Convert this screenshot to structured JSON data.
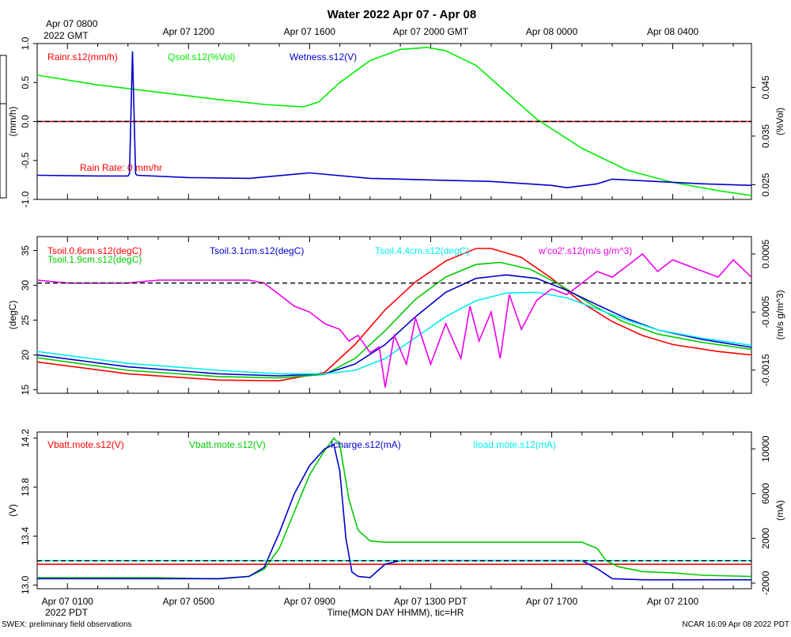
{
  "title": "Water 2022 Apr 07 - Apr 08",
  "top_axis": {
    "first_label_line1": "Apr 07 0800",
    "first_label_line2": "2022 GMT",
    "labels": [
      "Apr 07 1200",
      "Apr 07 1600",
      "Apr 07 2000 GMT",
      "Apr 08 0000",
      "Apr 08 0400"
    ]
  },
  "bottom_axis": {
    "labels": [
      "Apr 07 0100",
      "Apr 07 0500",
      "Apr 07 0900",
      "Apr 07 1300 PDT",
      "Apr 07 1700",
      "Apr 07 2100"
    ],
    "year_label": "2022 PDT",
    "axis_title": "Time(MON DAY HHMM), tic=HR"
  },
  "footer": {
    "left": "SWEX: preliminary field observations",
    "right": "NCAR 16:09 Apr 08 2022 PDT"
  },
  "chart_data": [
    {
      "type": "line",
      "panel": "water",
      "x_unit": "hours since Apr 07 0000 PDT",
      "xlim": [
        0.0,
        23.6
      ],
      "left_axis": {
        "label": "(mm/h)",
        "ylim": [
          -1.0,
          1.0
        ],
        "ticks": [
          "-1.0",
          "-0.5",
          "0.0",
          "0.5",
          "1.0"
        ]
      },
      "right_axis": {
        "label": "(%Vol)",
        "ylim": [
          0.022,
          0.054
        ],
        "ticks": [
          "0.025",
          "0.035",
          "0.045"
        ]
      },
      "reference_line": 0.0,
      "annotation": "Rain Rate: 0 mm/hr",
      "series": [
        {
          "name": "Rainr.s12(mm/h)",
          "color": "#ff0000",
          "axis": "left",
          "x": [
            0.0,
            23.6
          ],
          "y": [
            0.0,
            0.0
          ]
        },
        {
          "name": "Qsoil.s12(%Vol)",
          "color": "#00ee00",
          "axis": "right",
          "x": [
            0.0,
            2.0,
            4.0,
            6.0,
            7.5,
            8.8,
            9.3,
            10.0,
            11.0,
            12.0,
            12.9,
            13.5,
            14.5,
            15.5,
            16.5,
            18.0,
            19.5,
            21.0,
            22.5,
            23.6
          ],
          "y": [
            0.0475,
            0.0455,
            0.044,
            0.0425,
            0.0415,
            0.041,
            0.042,
            0.046,
            0.0505,
            0.0528,
            0.0532,
            0.0525,
            0.0495,
            0.044,
            0.0385,
            0.0325,
            0.028,
            0.0255,
            0.0238,
            0.0228
          ]
        },
        {
          "name": "Wetness.s12(V)",
          "color": "#0000cc",
          "axis": "left",
          "x": [
            0.0,
            2.0,
            3.0,
            3.05,
            3.15,
            3.25,
            3.3,
            5.0,
            7.0,
            9.0,
            11.0,
            13.0,
            15.0,
            17.0,
            17.5,
            18.5,
            19.0,
            20.0,
            22.0,
            23.6
          ],
          "y": [
            -0.69,
            -0.7,
            -0.7,
            -0.67,
            0.9,
            -0.67,
            -0.69,
            -0.72,
            -0.73,
            -0.66,
            -0.73,
            -0.75,
            -0.77,
            -0.82,
            -0.85,
            -0.8,
            -0.74,
            -0.76,
            -0.8,
            -0.82
          ]
        }
      ]
    },
    {
      "type": "line",
      "panel": "soil-temperature",
      "x_unit": "hours since Apr 07 0000 PDT",
      "xlim": [
        0.0,
        23.6
      ],
      "left_axis": {
        "label": "(degC)",
        "ylim": [
          14.5,
          37.0
        ],
        "ticks": [
          "15",
          "20",
          "25",
          "30",
          "35"
        ]
      },
      "right_axis": {
        "label": "(m/s g/m^3)",
        "ylim": [
          -0.0019,
          0.0008
        ],
        "ticks": [
          "-0.0015",
          "-0.0005",
          "0.0005"
        ]
      },
      "reference_line": 0.0,
      "series": [
        {
          "name": "Tsoil.0.6cm.s12(degC)",
          "color": "#ff0000",
          "axis": "left",
          "x": [
            0.0,
            3.0,
            6.0,
            8.0,
            9.5,
            10.5,
            11.5,
            12.5,
            13.5,
            14.5,
            15.0,
            16.0,
            17.0,
            18.0,
            19.0,
            20.0,
            21.0,
            22.5,
            23.6
          ],
          "y": [
            19.0,
            17.3,
            16.4,
            16.3,
            17.5,
            21.5,
            26.5,
            30.5,
            33.5,
            35.3,
            35.3,
            34.0,
            31.0,
            27.5,
            24.8,
            22.8,
            21.5,
            20.5,
            20.0
          ]
        },
        {
          "name": "Tsoil.1.9cm.s12(degC)",
          "color": "#00cc00",
          "axis": "left",
          "x": [
            0.0,
            3.0,
            6.0,
            8.0,
            9.5,
            10.5,
            11.5,
            12.5,
            13.5,
            14.5,
            15.3,
            16.3,
            17.3,
            18.3,
            19.3,
            20.5,
            22.0,
            23.6
          ],
          "y": [
            19.6,
            17.8,
            16.9,
            16.7,
            17.2,
            19.5,
            23.5,
            28.0,
            31.2,
            33.0,
            33.3,
            32.3,
            30.0,
            27.3,
            24.9,
            23.0,
            21.8,
            20.8
          ]
        },
        {
          "name": "Tsoil.3.1cm.s12(degC)",
          "color": "#0000cc",
          "axis": "left",
          "x": [
            0.0,
            3.0,
            6.0,
            8.0,
            9.5,
            10.5,
            11.5,
            12.5,
            13.5,
            14.5,
            15.5,
            16.5,
            17.5,
            18.5,
            19.5,
            20.5,
            22.0,
            23.6
          ],
          "y": [
            20.0,
            18.3,
            17.3,
            17.0,
            17.3,
            18.7,
            21.5,
            25.5,
            29.0,
            31.0,
            31.5,
            31.0,
            29.3,
            27.2,
            25.2,
            23.6,
            22.2,
            21.1
          ]
        },
        {
          "name": "Tsoil.4.4cm.s12(degC)",
          "color": "#00eeee",
          "axis": "left",
          "x": [
            0.0,
            3.0,
            6.0,
            8.0,
            9.5,
            10.5,
            11.5,
            12.5,
            13.5,
            14.5,
            15.5,
            16.5,
            17.5,
            18.5,
            19.5,
            20.5,
            22.0,
            23.6
          ],
          "y": [
            20.5,
            18.8,
            17.8,
            17.3,
            17.3,
            17.8,
            19.5,
            22.5,
            25.5,
            27.8,
            28.9,
            29.0,
            28.2,
            26.6,
            25.0,
            23.6,
            22.4,
            21.4
          ]
        },
        {
          "name": "w'co2'.s12(m/s g/m^3)",
          "color": "#ee00ee",
          "axis": "right",
          "x": [
            0.0,
            1.0,
            2.0,
            3.0,
            4.0,
            5.0,
            6.0,
            7.0,
            7.5,
            8.0,
            8.5,
            9.0,
            9.5,
            10.0,
            10.3,
            10.6,
            11.0,
            11.3,
            11.5,
            11.8,
            12.2,
            12.5,
            13.0,
            13.5,
            14.0,
            14.3,
            14.6,
            15.0,
            15.3,
            15.6,
            16.0,
            16.5,
            17.0,
            17.5,
            18.0,
            18.5,
            19.0,
            19.5,
            20.0,
            20.5,
            21.0,
            21.5,
            22.0,
            22.5,
            23.0,
            23.6
          ],
          "y": [
            5e-05,
            0.0,
            0.0,
            0.0,
            5e-05,
            5e-05,
            5e-05,
            5e-05,
            0.0,
            -0.0002,
            -0.0004,
            -0.0005,
            -0.0007,
            -0.0008,
            -0.001,
            -0.0009,
            -0.0012,
            -0.0011,
            -0.0018,
            -0.0009,
            -0.0014,
            -0.0006,
            -0.0014,
            -0.0007,
            -0.0013,
            -0.0004,
            -0.001,
            -0.0005,
            -0.0013,
            -0.0002,
            -0.0008,
            -0.0003,
            -0.0001,
            -0.0002,
            0.0,
            0.0002,
            0.0001,
            0.0003,
            0.0005,
            0.0002,
            0.0004,
            0.0003,
            0.0002,
            0.0001,
            0.0004,
            0.0001
          ]
        }
      ]
    },
    {
      "type": "line",
      "panel": "battery",
      "x_unit": "hours since Apr 07 0000 PDT",
      "xlim": [
        0.0,
        23.6
      ],
      "left_axis": {
        "label": "(V)",
        "ylim": [
          12.97,
          14.25
        ],
        "ticks": [
          "13.0",
          "13.4",
          "13.8",
          "14.2"
        ]
      },
      "right_axis": {
        "label": "(mA)",
        "ylim": [
          -2500,
          11500
        ],
        "ticks": [
          "-2000",
          "2000",
          "6000",
          "10000"
        ]
      },
      "reference_line": 0,
      "series": [
        {
          "name": "Vbatt.mote.s12(V)",
          "color": "#ff0000",
          "axis": "left",
          "x": [
            0.0,
            23.6
          ],
          "y": [
            13.17,
            13.17
          ]
        },
        {
          "name": "Vbatt.mote.s12(V)",
          "color": "#00cc00",
          "axis": "left",
          "x": [
            0.0,
            2.0,
            4.0,
            6.0,
            7.0,
            7.5,
            8.0,
            8.5,
            9.0,
            9.5,
            9.8,
            10.0,
            10.3,
            10.6,
            11.0,
            11.5,
            12.0,
            14.0,
            16.0,
            18.0,
            18.5,
            18.8,
            19.2,
            20.0,
            21.0,
            22.0,
            23.6
          ],
          "y": [
            13.06,
            13.06,
            13.06,
            13.05,
            13.07,
            13.13,
            13.3,
            13.6,
            13.9,
            14.1,
            14.2,
            14.15,
            13.7,
            13.45,
            13.36,
            13.35,
            13.35,
            13.35,
            13.35,
            13.35,
            13.3,
            13.2,
            13.15,
            13.11,
            13.1,
            13.08,
            13.07
          ]
        },
        {
          "name": "Icharge.s12(mA)",
          "color": "#0000cc",
          "axis": "right",
          "x": [
            0.0,
            2.0,
            4.0,
            6.0,
            7.0,
            7.5,
            8.0,
            8.5,
            9.0,
            9.5,
            9.8,
            10.0,
            10.2,
            10.4,
            10.6,
            11.0,
            11.5,
            12.0,
            14.0,
            16.0,
            18.0,
            18.5,
            19.0,
            20.0,
            22.0,
            23.6
          ],
          "y": [
            -1600,
            -1600,
            -1600,
            -1600,
            -1400,
            -600,
            2500,
            6000,
            8500,
            10000,
            10400,
            8000,
            2000,
            -1000,
            -1400,
            -1500,
            -300,
            0,
            0,
            0,
            0,
            -700,
            -1600,
            -1700,
            -1700,
            -1700
          ]
        },
        {
          "name": "Iload.mote.s12(mA)",
          "color": "#00eeee",
          "axis": "right",
          "x": [
            0.0,
            23.6
          ],
          "y": [
            0,
            0
          ]
        }
      ]
    }
  ]
}
